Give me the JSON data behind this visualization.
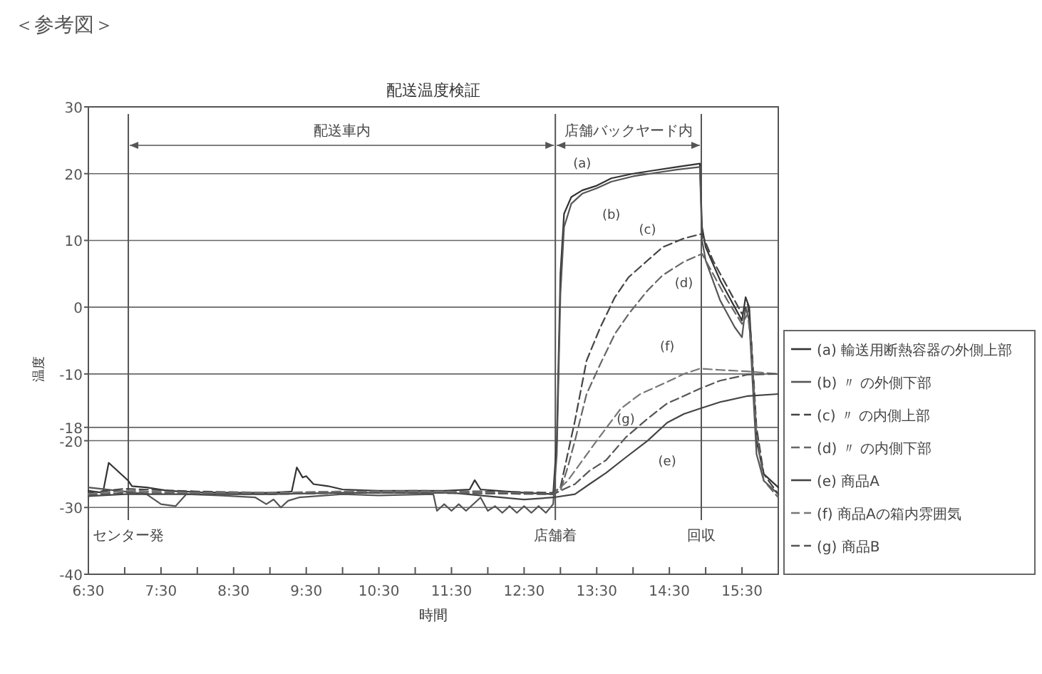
{
  "chart_data": {
    "type": "line",
    "title": "配送温度検証",
    "xlabel": "時間",
    "ylabel": "温度",
    "annotations": [
      "＜参考図＞",
      "配送車内",
      "店舗バックヤード内",
      "(a)",
      "(b)",
      "(c)",
      "(d)",
      "(e)",
      "(f)",
      "(g)"
    ],
    "xlim": [
      6.5,
      16.0
    ],
    "ylim": [
      -40,
      30
    ],
    "xticks": [
      {
        "value": 6.5,
        "label": "6:30"
      },
      {
        "value": 7.0,
        "label": null
      },
      {
        "value": 7.5,
        "label": "7:30"
      },
      {
        "value": 8.0,
        "label": null
      },
      {
        "value": 8.5,
        "label": "8:30"
      },
      {
        "value": 9.0,
        "label": null
      },
      {
        "value": 9.5,
        "label": "9:30"
      },
      {
        "value": 10.0,
        "label": null
      },
      {
        "value": 10.5,
        "label": "10:30"
      },
      {
        "value": 11.0,
        "label": null
      },
      {
        "value": 11.5,
        "label": "11:30"
      },
      {
        "value": 12.0,
        "label": null
      },
      {
        "value": 12.5,
        "label": "12:30"
      },
      {
        "value": 13.0,
        "label": null
      },
      {
        "value": 13.5,
        "label": "13:30"
      },
      {
        "value": 14.0,
        "label": null
      },
      {
        "value": 14.5,
        "label": "14:30"
      },
      {
        "value": 15.0,
        "label": null
      },
      {
        "value": 15.5,
        "label": "15:30"
      }
    ],
    "yticks": [
      -40,
      -30,
      -20,
      -18,
      -10,
      0,
      10,
      20,
      30
    ],
    "grid": "y",
    "legend": "right",
    "ref_lines": [
      {
        "axis": "x",
        "value": 7.05,
        "label": "センター発",
        "color": "#555555"
      },
      {
        "axis": "x",
        "value": 12.93,
        "label": "店舗着",
        "color": "#555555"
      },
      {
        "axis": "x",
        "value": 14.94,
        "label": "回収",
        "color": "#555555"
      }
    ],
    "series": [
      {
        "name": "(a) 輸送用断熱容器の外側上部",
        "color": "#333333",
        "line_style": "solid",
        "x": [
          6.5,
          6.7,
          6.78,
          6.9,
          7.05,
          7.1,
          7.3,
          7.6,
          8.0,
          8.5,
          9.0,
          9.3,
          9.37,
          9.45,
          9.5,
          9.6,
          9.8,
          10.0,
          10.5,
          11.0,
          11.4,
          11.75,
          11.82,
          11.9,
          12.5,
          12.9,
          12.95,
          13.0,
          13.05,
          13.15,
          13.3,
          13.5,
          13.7,
          14.0,
          14.3,
          14.6,
          14.92,
          14.95,
          15.0,
          15.2,
          15.4,
          15.5,
          15.55,
          15.6,
          15.65,
          15.7,
          15.8,
          16.0
        ],
        "values": [
          -27.5,
          -27.8,
          -23.3,
          -24.5,
          -26.0,
          -26.8,
          -27.0,
          -27.5,
          -27.7,
          -27.8,
          -27.8,
          -27.6,
          -24.0,
          -25.5,
          -25.3,
          -26.5,
          -26.8,
          -27.3,
          -27.5,
          -27.5,
          -27.5,
          -27.3,
          -25.9,
          -27.3,
          -27.8,
          -28.0,
          -20,
          5,
          14,
          16.5,
          17.5,
          18.2,
          19.3,
          20.0,
          20.5,
          21.0,
          21.5,
          12,
          9,
          4,
          0,
          -2,
          1.5,
          0,
          -10,
          -20,
          -25,
          -27
        ]
      },
      {
        "name": "(b) 〃 の外側下部",
        "color": "#555555",
        "line_style": "solid",
        "x": [
          6.5,
          7.0,
          7.3,
          7.5,
          7.7,
          7.85,
          8.3,
          8.8,
          8.95,
          9.05,
          9.15,
          9.25,
          9.4,
          10.0,
          10.5,
          11.25,
          11.3,
          11.4,
          11.5,
          11.6,
          11.7,
          11.9,
          12.0,
          12.1,
          12.2,
          12.3,
          12.4,
          12.5,
          12.6,
          12.7,
          12.8,
          12.9,
          12.95,
          13.0,
          13.05,
          13.15,
          13.3,
          13.5,
          13.7,
          14.0,
          14.3,
          14.6,
          14.92,
          14.95,
          15.0,
          15.2,
          15.4,
          15.5,
          15.55,
          15.6,
          15.65,
          15.7,
          15.8,
          16.0
        ],
        "values": [
          -27.0,
          -27.6,
          -28,
          -29.5,
          -29.8,
          -28,
          -28.2,
          -28.5,
          -29.5,
          -28.8,
          -30,
          -29,
          -28.5,
          -28,
          -28.2,
          -28,
          -30.5,
          -29.5,
          -30.5,
          -29.5,
          -30.5,
          -28.5,
          -30.5,
          -29.8,
          -30.8,
          -29.8,
          -30.8,
          -29.8,
          -30.8,
          -29.8,
          -30.8,
          -29.5,
          -22,
          2,
          12,
          15.5,
          17,
          17.8,
          18.8,
          19.6,
          20.1,
          20.6,
          21.0,
          10,
          7,
          1,
          -3,
          -4.5,
          0,
          -2,
          -12,
          -22,
          -26,
          -28
        ]
      },
      {
        "name": "(c) 〃 の内側上部",
        "color": "#444444",
        "line_style": "dashed",
        "x": [
          6.5,
          7.0,
          8.0,
          9.0,
          10.0,
          11.0,
          12.0,
          12.9,
          13.0,
          13.1,
          13.2,
          13.36,
          13.55,
          13.75,
          13.94,
          14.2,
          14.41,
          14.7,
          14.95,
          15.1,
          15.3,
          15.5,
          15.58,
          15.63,
          15.7,
          15.8,
          16.0
        ],
        "values": [
          -27.8,
          -27.2,
          -27.6,
          -27.8,
          -27.6,
          -27.5,
          -27.6,
          -27.8,
          -27.0,
          -22,
          -17,
          -8,
          -3,
          1.5,
          4.5,
          7,
          9,
          10.3,
          11,
          7,
          3,
          -1,
          0.5,
          -5,
          -18,
          -25,
          -28
        ]
      },
      {
        "name": "(d) 〃 の内側下部",
        "color": "#666666",
        "line_style": "dashed",
        "x": [
          6.5,
          7.0,
          8.0,
          9.0,
          10.0,
          11.0,
          12.0,
          12.9,
          13.0,
          13.1,
          13.2,
          13.36,
          13.55,
          13.75,
          13.94,
          14.2,
          14.41,
          14.7,
          14.95,
          15.1,
          15.3,
          15.5,
          15.58,
          15.63,
          15.7,
          15.8,
          16.0
        ],
        "values": [
          -28,
          -27.5,
          -27.9,
          -28,
          -27.8,
          -27.8,
          -27.9,
          -28,
          -27.5,
          -24,
          -20,
          -13,
          -8.5,
          -4,
          -1,
          2.5,
          4.8,
          6.8,
          8,
          5,
          1,
          -2.5,
          -1,
          -6,
          -19,
          -26,
          -28.5
        ]
      },
      {
        "name": "(e) 商品A",
        "color": "#444444",
        "line_style": "solid",
        "x": [
          6.5,
          7.0,
          8.0,
          9.0,
          10.0,
          11.0,
          11.5,
          12.0,
          12.5,
          12.9,
          13.2,
          13.4,
          13.63,
          13.9,
          14.2,
          14.47,
          14.7,
          14.92,
          15.2,
          15.58,
          16.0
        ],
        "values": [
          -28.3,
          -28,
          -28,
          -28,
          -27.8,
          -27.8,
          -27.8,
          -28.3,
          -28.8,
          -28.5,
          -28,
          -26.5,
          -24.8,
          -22.5,
          -20,
          -17.3,
          -16,
          -15.2,
          -14.2,
          -13.3,
          -13
        ]
      },
      {
        "name": "(f) 商品Aの箱内雰囲気",
        "color": "#777777",
        "line_style": "dashed",
        "x": [
          6.5,
          7.0,
          8.0,
          9.0,
          10.0,
          11.0,
          12.0,
          12.9,
          13.1,
          13.3,
          13.5,
          13.83,
          14.1,
          14.47,
          14.7,
          14.92,
          15.2,
          15.55,
          16.0
        ],
        "values": [
          -28,
          -27.5,
          -27.8,
          -27.8,
          -27.6,
          -27.6,
          -27.7,
          -28,
          -26,
          -23,
          -20,
          -15.2,
          -13,
          -11.2,
          -10,
          -9.2,
          -9.4,
          -9.6,
          -10
        ]
      },
      {
        "name": "(g) 商品B",
        "color": "#555555",
        "line_style": "dashed",
        "x": [
          6.5,
          7.0,
          8.0,
          9.0,
          10.0,
          11.0,
          12.0,
          12.9,
          13.2,
          13.4,
          13.63,
          13.9,
          14.2,
          14.47,
          14.7,
          14.92,
          15.2,
          15.58,
          16.0
        ],
        "values": [
          -28.2,
          -27.8,
          -28,
          -28,
          -27.8,
          -27.8,
          -27.9,
          -28,
          -26.5,
          -24.5,
          -22.9,
          -19.5,
          -16.7,
          -14.4,
          -13.3,
          -12.2,
          -11,
          -10.1,
          -10
        ]
      }
    ]
  }
}
